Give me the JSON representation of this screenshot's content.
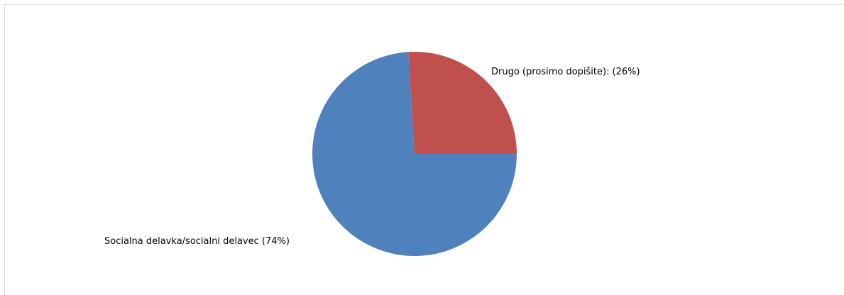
{
  "chart_data": {
    "type": "pie",
    "title": "",
    "categories": [
      "Socialna delavka/socialni delavec",
      "Drugo (prosimo dopišite):"
    ],
    "values": [
      74,
      26
    ],
    "unit": "%",
    "labels": [
      "Socialna delavka/socialni delavec (74%)",
      "Drugo (prosimo dopišite): (26%)"
    ],
    "colors": [
      "#4f81bd",
      "#c0504d"
    ],
    "legend": "none",
    "start_angle": "3 o'clock",
    "direction": "clockwise"
  }
}
